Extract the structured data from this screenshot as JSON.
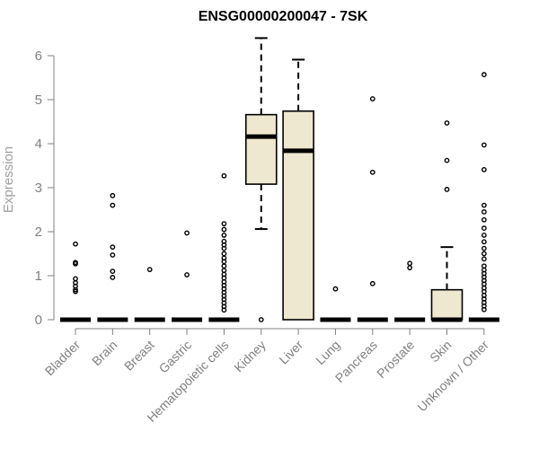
{
  "chart_data": {
    "type": "boxplot",
    "title": "ENSG00000200047 - 7SK",
    "xlabel": "",
    "ylabel": "Expression",
    "ylim": [
      0,
      6.5
    ],
    "yticks": [
      0,
      1,
      2,
      3,
      4,
      5,
      6
    ],
    "grid": false,
    "colors": {
      "box_fill": "#efe8d0",
      "box_stroke": "#000000",
      "axis": "#808080"
    },
    "categories": [
      "Bladder",
      "Brain",
      "Breast",
      "Gastric",
      "Hematopoietic cells",
      "Kidney",
      "Liver",
      "Lung",
      "Pancreas",
      "Prostate",
      "Skin",
      "Unknown / Other"
    ],
    "boxes": [
      {
        "q1": 0,
        "median": 0,
        "q3": 0,
        "whisker_low": 0,
        "whisker_high": 0,
        "outliers": [
          1.72,
          1.3,
          1.27,
          0.93,
          0.84,
          0.76,
          0.68,
          0.64
        ]
      },
      {
        "q1": 0,
        "median": 0,
        "q3": 0,
        "whisker_low": 0,
        "whisker_high": 0,
        "outliers": [
          2.82,
          2.6,
          1.65,
          1.47,
          1.1,
          0.96
        ]
      },
      {
        "q1": 0,
        "median": 0,
        "q3": 0,
        "whisker_low": 0,
        "whisker_high": 0,
        "outliers": [
          1.14
        ]
      },
      {
        "q1": 0,
        "median": 0,
        "q3": 0,
        "whisker_low": 0,
        "whisker_high": 0,
        "outliers": [
          1.97,
          1.02
        ]
      },
      {
        "q1": 0,
        "median": 0,
        "q3": 0,
        "whisker_low": 0,
        "whisker_high": 0,
        "outliers": [
          3.27,
          2.18,
          2.05,
          1.92,
          1.78,
          1.7,
          1.62,
          1.5,
          1.4,
          1.32,
          1.22,
          1.12,
          1.03,
          0.95,
          0.86,
          0.78,
          0.7,
          0.62,
          0.54,
          0.46,
          0.38,
          0.3,
          0.22
        ]
      },
      {
        "q1": 3.08,
        "median": 4.16,
        "q3": 4.66,
        "whisker_low": 2.06,
        "whisker_high": 6.4,
        "outliers": [
          0
        ]
      },
      {
        "q1": 0,
        "median": 3.84,
        "q3": 4.74,
        "whisker_low": 0,
        "whisker_high": 5.91,
        "outliers": []
      },
      {
        "q1": 0,
        "median": 0,
        "q3": 0,
        "whisker_low": 0,
        "whisker_high": 0,
        "outliers": [
          0.7
        ]
      },
      {
        "q1": 0,
        "median": 0,
        "q3": 0,
        "whisker_low": 0,
        "whisker_high": 0,
        "outliers": [
          5.02,
          3.35,
          0.82
        ]
      },
      {
        "q1": 0,
        "median": 0,
        "q3": 0,
        "whisker_low": 0,
        "whisker_high": 0,
        "outliers": [
          1.28,
          1.18
        ]
      },
      {
        "q1": 0,
        "median": 0,
        "q3": 0.68,
        "whisker_low": 0,
        "whisker_high": 1.65,
        "outliers": [
          4.47,
          3.62,
          2.96
        ]
      },
      {
        "q1": 0,
        "median": 0,
        "q3": 0,
        "whisker_low": 0,
        "whisker_high": 0,
        "outliers": [
          5.57,
          3.97,
          3.41,
          2.6,
          2.45,
          2.27,
          2.08,
          1.92,
          1.77,
          1.62,
          1.5,
          1.38,
          1.22,
          1.13,
          1.05,
          0.97,
          0.89,
          0.81,
          0.72,
          0.64,
          0.55,
          0.47,
          0.39,
          0.31,
          0.23
        ]
      }
    ]
  }
}
